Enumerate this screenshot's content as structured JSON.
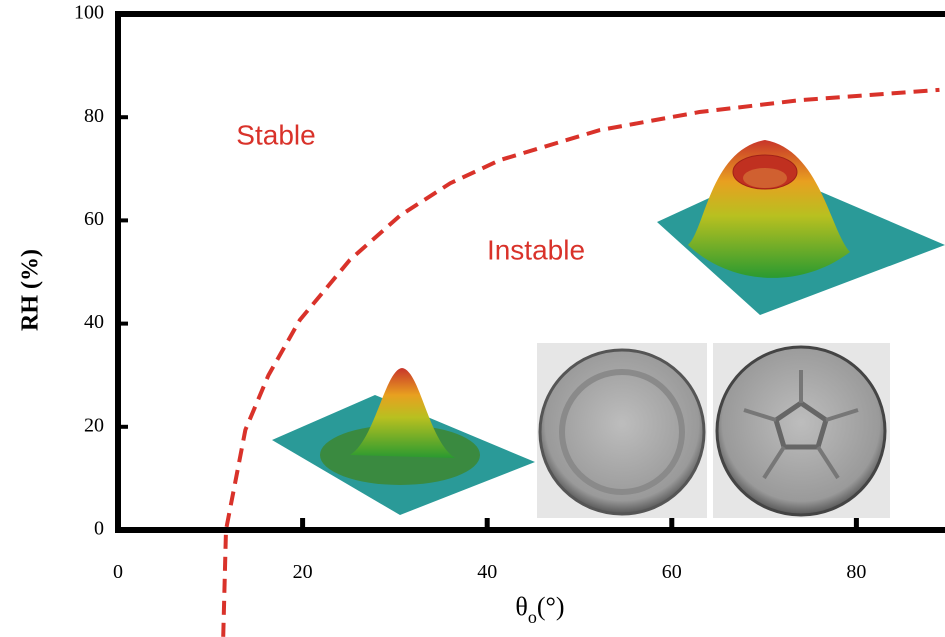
{
  "chart_data": {
    "type": "line",
    "y_label": "RH (%)",
    "x_label": {
      "symbol": "θ",
      "subscript": "o",
      "unit": "(°)"
    },
    "annotations": [
      "Stable",
      "Instable"
    ],
    "x": [
      11.4,
      11.7,
      13.8,
      16.3,
      19.7,
      25.1,
      30.6,
      36.0,
      41.4,
      52.2,
      63.0,
      73.9,
      89.0
    ],
    "series": [
      {
        "color": "#d9322a",
        "dashed": true,
        "values": [
          -20.7,
          0,
          19.4,
          30,
          40.7,
          52.3,
          61,
          67.2,
          71.7,
          77.5,
          81,
          83.3,
          85.3
        ]
      }
    ],
    "xlim": [
      0,
      89.6
    ],
    "ylim": [
      0,
      100
    ],
    "xticks": [
      0,
      20,
      40,
      60,
      80
    ],
    "yticks": [
      0,
      20,
      40,
      60,
      80,
      100
    ]
  }
}
